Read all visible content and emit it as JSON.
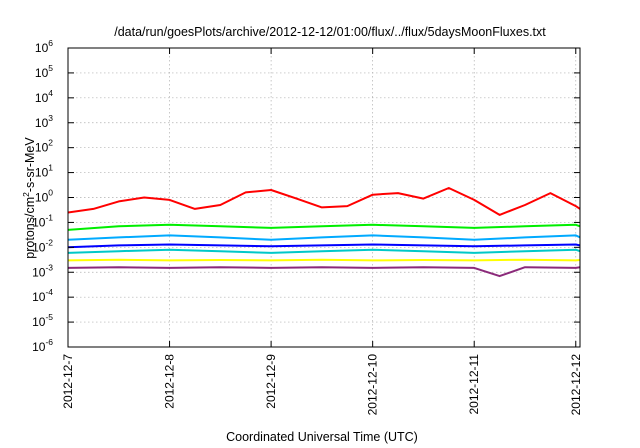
{
  "chart_data": {
    "type": "line",
    "title": "/data/run/goesPlots/archive/2012-12-12/01:00/flux/../flux/5daysMoonFluxes.txt",
    "xlabel": "Coordinated Universal Time (UTC)",
    "ylabel": "protons/cm2-s-sr-MeV",
    "ylabel_parts": {
      "pre": "protons/cm",
      "sup": "2",
      "post": "-s-sr-MeV"
    },
    "yscale": "log",
    "ylim": [
      1e-06,
      1000000.0
    ],
    "y_ticks": [
      {
        "exp": -6,
        "label": "10",
        "sup": "-6"
      },
      {
        "exp": -5,
        "label": "10",
        "sup": "-5"
      },
      {
        "exp": -4,
        "label": "10",
        "sup": "-4"
      },
      {
        "exp": -3,
        "label": "10",
        "sup": "-3"
      },
      {
        "exp": -2,
        "label": "10",
        "sup": "-2"
      },
      {
        "exp": -1,
        "label": "10",
        "sup": "-1"
      },
      {
        "exp": 0,
        "label": "10",
        "sup": "0"
      },
      {
        "exp": 1,
        "label": "10",
        "sup": "1"
      },
      {
        "exp": 2,
        "label": "10",
        "sup": "2"
      },
      {
        "exp": 3,
        "label": "10",
        "sup": "3"
      },
      {
        "exp": 4,
        "label": "10",
        "sup": "4"
      },
      {
        "exp": 5,
        "label": "10",
        "sup": "5"
      },
      {
        "exp": 6,
        "label": "10",
        "sup": "6"
      }
    ],
    "xlim": [
      "2012-12-07",
      "2012-12-12 01:00"
    ],
    "x_ticks": [
      "2012-12-7",
      "2012-12-8",
      "2012-12-9",
      "2012-12-10",
      "2012-12-11",
      "2012-12-12"
    ],
    "grid": true,
    "legend": "none",
    "series": [
      {
        "color": "#ff0000",
        "x": [
          "2012-12-07 00:00",
          "2012-12-07 06:00",
          "2012-12-07 12:00",
          "2012-12-07 18:00",
          "2012-12-08 00:00",
          "2012-12-08 06:00",
          "2012-12-08 12:00",
          "2012-12-08 18:00",
          "2012-12-09 00:00",
          "2012-12-09 06:00",
          "2012-12-09 12:00",
          "2012-12-09 18:00",
          "2012-12-10 00:00",
          "2012-12-10 06:00",
          "2012-12-10 12:00",
          "2012-12-10 18:00",
          "2012-12-11 00:00",
          "2012-12-11 06:00",
          "2012-12-11 12:00",
          "2012-12-11 18:00",
          "2012-12-12 00:00",
          "2012-12-12 01:00"
        ],
        "y": [
          0.25,
          0.35,
          0.7,
          1.0,
          0.8,
          0.35,
          0.5,
          1.6,
          2.0,
          0.9,
          0.4,
          0.45,
          1.3,
          1.5,
          0.9,
          2.4,
          0.8,
          0.2,
          0.5,
          1.5,
          0.45,
          0.35
        ]
      },
      {
        "color": "#00ee00",
        "x": [
          "2012-12-07 00:00",
          "2012-12-07 12:00",
          "2012-12-08 00:00",
          "2012-12-08 12:00",
          "2012-12-09 00:00",
          "2012-12-09 12:00",
          "2012-12-10 00:00",
          "2012-12-10 12:00",
          "2012-12-11 00:00",
          "2012-12-11 12:00",
          "2012-12-12 00:00",
          "2012-12-12 01:00"
        ],
        "y": [
          0.05,
          0.07,
          0.08,
          0.07,
          0.06,
          0.07,
          0.08,
          0.07,
          0.06,
          0.07,
          0.08,
          0.07
        ]
      },
      {
        "color": "#0000ff",
        "x": [
          "2012-12-07 00:00",
          "2012-12-07 12:00",
          "2012-12-08 00:00",
          "2012-12-08 12:00",
          "2012-12-09 00:00",
          "2012-12-09 12:00",
          "2012-12-10 00:00",
          "2012-12-10 12:00",
          "2012-12-11 00:00",
          "2012-12-11 12:00",
          "2012-12-12 00:00",
          "2012-12-12 01:00"
        ],
        "y": [
          0.01,
          0.012,
          0.013,
          0.012,
          0.011,
          0.012,
          0.013,
          0.012,
          0.011,
          0.012,
          0.013,
          0.012
        ]
      },
      {
        "color": "#00aaff",
        "x": [
          "2012-12-07 00:00",
          "2012-12-07 12:00",
          "2012-12-08 00:00",
          "2012-12-08 12:00",
          "2012-12-09 00:00",
          "2012-12-09 12:00",
          "2012-12-10 00:00",
          "2012-12-10 12:00",
          "2012-12-11 00:00",
          "2012-12-11 12:00",
          "2012-12-12 00:00",
          "2012-12-12 01:00"
        ],
        "y": [
          0.02,
          0.025,
          0.03,
          0.025,
          0.02,
          0.025,
          0.03,
          0.025,
          0.02,
          0.025,
          0.03,
          0.025
        ]
      },
      {
        "color": "#00c8c8",
        "x": [
          "2012-12-07 00:00",
          "2012-12-07 12:00",
          "2012-12-08 00:00",
          "2012-12-08 12:00",
          "2012-12-09 00:00",
          "2012-12-09 12:00",
          "2012-12-10 00:00",
          "2012-12-10 12:00",
          "2012-12-11 00:00",
          "2012-12-11 12:00",
          "2012-12-12 00:00",
          "2012-12-12 01:00"
        ],
        "y": [
          0.006,
          0.007,
          0.008,
          0.007,
          0.006,
          0.007,
          0.008,
          0.007,
          0.006,
          0.007,
          0.008,
          0.007
        ]
      },
      {
        "color": "#ffff00",
        "x": [
          "2012-12-07 00:00",
          "2012-12-07 12:00",
          "2012-12-08 00:00",
          "2012-12-08 12:00",
          "2012-12-09 00:00",
          "2012-12-09 12:00",
          "2012-12-10 00:00",
          "2012-12-10 12:00",
          "2012-12-11 00:00",
          "2012-12-11 12:00",
          "2012-12-12 00:00",
          "2012-12-12 01:00"
        ],
        "y": [
          0.003,
          0.0032,
          0.003,
          0.0031,
          0.003,
          0.0032,
          0.003,
          0.0031,
          0.003,
          0.0032,
          0.003,
          0.0031
        ]
      },
      {
        "color": "#8b2a7a",
        "x": [
          "2012-12-07 00:00",
          "2012-12-07 12:00",
          "2012-12-08 00:00",
          "2012-12-08 12:00",
          "2012-12-09 00:00",
          "2012-12-09 12:00",
          "2012-12-10 00:00",
          "2012-12-10 12:00",
          "2012-12-11 00:00",
          "2012-12-11 06:00",
          "2012-12-11 12:00",
          "2012-12-12 00:00",
          "2012-12-12 01:00"
        ],
        "y": [
          0.0015,
          0.0016,
          0.0015,
          0.0016,
          0.0015,
          0.0016,
          0.0015,
          0.0016,
          0.0015,
          0.0007,
          0.0016,
          0.0015,
          0.0016
        ]
      }
    ]
  }
}
